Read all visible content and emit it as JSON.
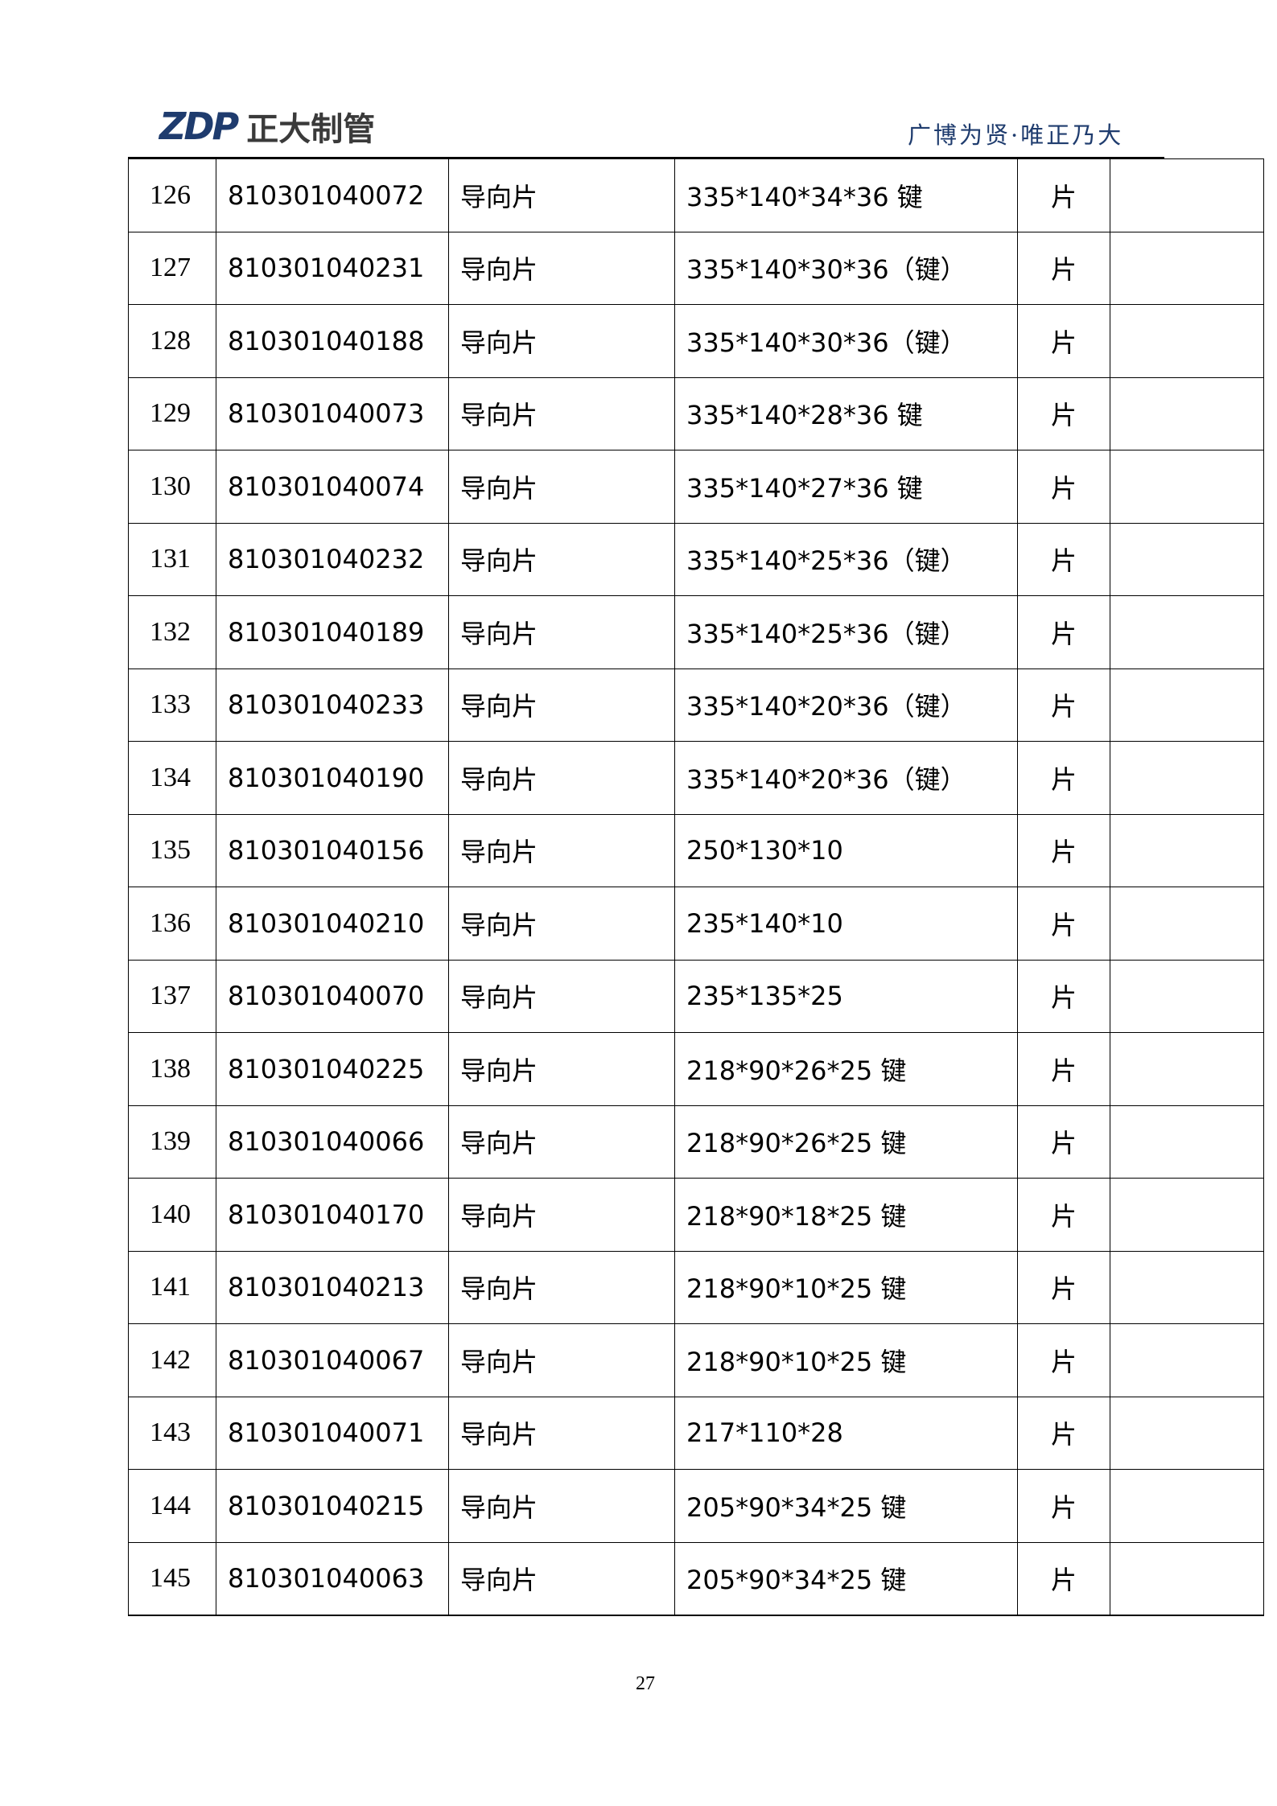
{
  "header": {
    "logo_mark": "ZDP",
    "logo_text": "正大制管",
    "slogan": "广博为贤·唯正乃大",
    "brand_color": "#1f3c6e"
  },
  "rows": [
    {
      "no": "126",
      "code": "810301040072",
      "name": "导向片",
      "spec": "335*140*34*36 键",
      "unit": "片",
      "note": ""
    },
    {
      "no": "127",
      "code": "810301040231",
      "name": "导向片",
      "spec": "335*140*30*36（键）",
      "unit": "片",
      "note": ""
    },
    {
      "no": "128",
      "code": "810301040188",
      "name": "导向片",
      "spec": "335*140*30*36（键）",
      "unit": "片",
      "note": ""
    },
    {
      "no": "129",
      "code": "810301040073",
      "name": "导向片",
      "spec": "335*140*28*36 键",
      "unit": "片",
      "note": ""
    },
    {
      "no": "130",
      "code": "810301040074",
      "name": "导向片",
      "spec": "335*140*27*36 键",
      "unit": "片",
      "note": ""
    },
    {
      "no": "131",
      "code": "810301040232",
      "name": "导向片",
      "spec": "335*140*25*36（键）",
      "unit": "片",
      "note": ""
    },
    {
      "no": "132",
      "code": "810301040189",
      "name": "导向片",
      "spec": "335*140*25*36（键）",
      "unit": "片",
      "note": ""
    },
    {
      "no": "133",
      "code": "810301040233",
      "name": "导向片",
      "spec": "335*140*20*36（键）",
      "unit": "片",
      "note": ""
    },
    {
      "no": "134",
      "code": "810301040190",
      "name": "导向片",
      "spec": "335*140*20*36（键）",
      "unit": "片",
      "note": ""
    },
    {
      "no": "135",
      "code": "810301040156",
      "name": "导向片",
      "spec": "250*130*10",
      "unit": "片",
      "note": ""
    },
    {
      "no": "136",
      "code": "810301040210",
      "name": "导向片",
      "spec": "235*140*10",
      "unit": "片",
      "note": ""
    },
    {
      "no": "137",
      "code": "810301040070",
      "name": "导向片",
      "spec": "235*135*25",
      "unit": "片",
      "note": ""
    },
    {
      "no": "138",
      "code": "810301040225",
      "name": "导向片",
      "spec": "218*90*26*25 键",
      "unit": "片",
      "note": ""
    },
    {
      "no": "139",
      "code": "810301040066",
      "name": "导向片",
      "spec": "218*90*26*25 键",
      "unit": "片",
      "note": ""
    },
    {
      "no": "140",
      "code": "810301040170",
      "name": "导向片",
      "spec": "218*90*18*25 键",
      "unit": "片",
      "note": ""
    },
    {
      "no": "141",
      "code": "810301040213",
      "name": "导向片",
      "spec": "218*90*10*25 键",
      "unit": "片",
      "note": ""
    },
    {
      "no": "142",
      "code": "810301040067",
      "name": "导向片",
      "spec": "218*90*10*25 键",
      "unit": "片",
      "note": ""
    },
    {
      "no": "143",
      "code": "810301040071",
      "name": "导向片",
      "spec": "217*110*28",
      "unit": "片",
      "note": ""
    },
    {
      "no": "144",
      "code": "810301040215",
      "name": "导向片",
      "spec": "205*90*34*25 键",
      "unit": "片",
      "note": ""
    },
    {
      "no": "145",
      "code": "810301040063",
      "name": "导向片",
      "spec": "205*90*34*25 键",
      "unit": "片",
      "note": ""
    }
  ],
  "footer": {
    "page_number": "27"
  }
}
